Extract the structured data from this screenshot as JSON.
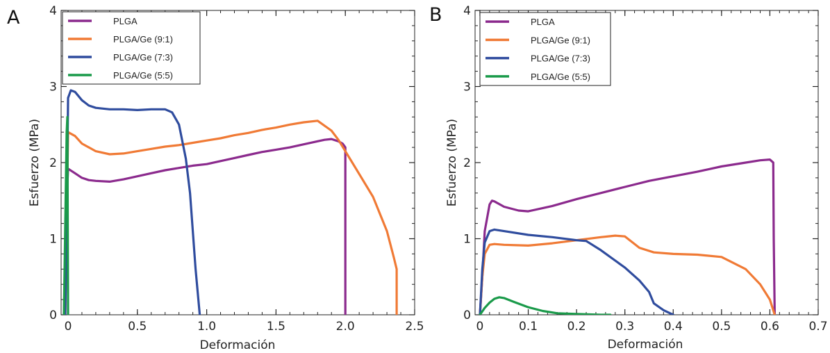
{
  "chart_data": [
    {
      "type": "line",
      "panel_label": "A",
      "xlabel": "Deformación",
      "ylabel": "Esfuerzo (MPa)",
      "xlim": [
        -0.05,
        2.5
      ],
      "ylim": [
        0,
        4
      ],
      "xticks": [
        0,
        0.5,
        1.0,
        1.5,
        2.0,
        2.5
      ],
      "xtick_labels": [
        "0",
        "0.5",
        "1.0",
        "1.5",
        "2.0",
        "2.5"
      ],
      "yticks": [
        0,
        1,
        2,
        3,
        4
      ],
      "ytick_labels": [
        "0",
        "1",
        "2",
        "3",
        "4"
      ],
      "legend_position": "top-left",
      "grid": false,
      "series": [
        {
          "name": "PLGA",
          "color": "#8b2a8d",
          "x": [
            -0.03,
            -0.01,
            0,
            0.05,
            0.1,
            0.15,
            0.2,
            0.3,
            0.4,
            0.5,
            0.6,
            0.7,
            0.8,
            0.9,
            1.0,
            1.1,
            1.2,
            1.3,
            1.4,
            1.5,
            1.6,
            1.7,
            1.8,
            1.85,
            1.9,
            1.95,
            1.98,
            2.0,
            2.0
          ],
          "y": [
            0,
            1.5,
            1.92,
            1.86,
            1.8,
            1.77,
            1.76,
            1.75,
            1.78,
            1.82,
            1.86,
            1.9,
            1.93,
            1.96,
            1.98,
            2.02,
            2.06,
            2.1,
            2.14,
            2.17,
            2.2,
            2.24,
            2.28,
            2.3,
            2.31,
            2.28,
            2.25,
            2.2,
            0
          ]
        },
        {
          "name": "PLGA/Ge (9:1)",
          "color": "#f07a35",
          "x": [
            -0.02,
            -0.005,
            0,
            0.05,
            0.1,
            0.2,
            0.3,
            0.4,
            0.5,
            0.6,
            0.7,
            0.8,
            0.9,
            1.0,
            1.1,
            1.2,
            1.3,
            1.4,
            1.5,
            1.6,
            1.7,
            1.8,
            1.9,
            1.95,
            2.0,
            2.05,
            2.1,
            2.2,
            2.3,
            2.35,
            2.37,
            2.37
          ],
          "y": [
            0,
            1.8,
            2.4,
            2.35,
            2.25,
            2.15,
            2.11,
            2.12,
            2.15,
            2.18,
            2.21,
            2.23,
            2.26,
            2.29,
            2.32,
            2.36,
            2.39,
            2.43,
            2.46,
            2.5,
            2.53,
            2.55,
            2.42,
            2.3,
            2.15,
            2.0,
            1.85,
            1.55,
            1.1,
            0.75,
            0.6,
            0
          ]
        },
        {
          "name": "PLGA/Ge (7:3)",
          "color": "#2f4c9e",
          "x": [
            -0.02,
            -0.005,
            0,
            0.02,
            0.05,
            0.1,
            0.15,
            0.2,
            0.3,
            0.4,
            0.5,
            0.6,
            0.7,
            0.75,
            0.8,
            0.85,
            0.88,
            0.9,
            0.92,
            0.94,
            0.95
          ],
          "y": [
            0,
            2.0,
            2.85,
            2.95,
            2.93,
            2.82,
            2.75,
            2.72,
            2.7,
            2.7,
            2.69,
            2.7,
            2.7,
            2.66,
            2.5,
            2.05,
            1.6,
            1.1,
            0.6,
            0.2,
            0
          ]
        },
        {
          "name": "PLGA/Ge (5:5)",
          "color": "#1a9a4a",
          "x": [
            -0.03,
            -0.025,
            -0.02,
            -0.015,
            -0.01,
            -0.005,
            0
          ],
          "y": [
            0,
            0.6,
            1.2,
            1.8,
            2.4,
            2.6,
            0
          ]
        }
      ],
      "legend": [
        "PLGA",
        "PLGA/Ge (9:1)",
        "PLGA/Ge (7:3)",
        "PLGA/Ge (5:5)"
      ]
    },
    {
      "type": "line",
      "panel_label": "B",
      "xlabel": "Deformación",
      "ylabel": "Esfuerzo (MPa)",
      "xlim": [
        -0.01,
        0.7
      ],
      "ylim": [
        0,
        4
      ],
      "xticks": [
        0,
        0.1,
        0.2,
        0.3,
        0.4,
        0.5,
        0.6,
        0.7
      ],
      "xtick_labels": [
        "0",
        "0.1",
        "0.2",
        "0.3",
        "0.4",
        "0.5",
        "0.6",
        "0.7"
      ],
      "yticks": [
        0,
        1,
        2,
        3,
        4
      ],
      "ytick_labels": [
        "0",
        "1",
        "2",
        "3",
        "4"
      ],
      "legend_position": "top-left",
      "grid": false,
      "series": [
        {
          "name": "PLGA",
          "color": "#8b2a8d",
          "x": [
            0,
            0.005,
            0.01,
            0.02,
            0.025,
            0.03,
            0.05,
            0.08,
            0.1,
            0.15,
            0.2,
            0.25,
            0.3,
            0.35,
            0.4,
            0.45,
            0.5,
            0.55,
            0.58,
            0.6,
            0.607,
            0.608,
            0.61
          ],
          "y": [
            0,
            0.5,
            1.1,
            1.45,
            1.5,
            1.49,
            1.42,
            1.37,
            1.36,
            1.43,
            1.52,
            1.6,
            1.68,
            1.76,
            1.82,
            1.88,
            1.95,
            2.0,
            2.03,
            2.04,
            2.0,
            1.0,
            0
          ]
        },
        {
          "name": "PLGA/Ge (9:1)",
          "color": "#f07a35",
          "x": [
            0,
            0.005,
            0.01,
            0.02,
            0.03,
            0.05,
            0.1,
            0.15,
            0.2,
            0.25,
            0.28,
            0.3,
            0.33,
            0.36,
            0.4,
            0.45,
            0.5,
            0.55,
            0.58,
            0.6,
            0.61
          ],
          "y": [
            0,
            0.5,
            0.8,
            0.92,
            0.93,
            0.92,
            0.91,
            0.94,
            0.98,
            1.02,
            1.04,
            1.03,
            0.88,
            0.82,
            0.8,
            0.79,
            0.76,
            0.6,
            0.4,
            0.2,
            0
          ]
        },
        {
          "name": "PLGA/Ge (7:3)",
          "color": "#2f4c9e",
          "x": [
            0,
            0.005,
            0.01,
            0.02,
            0.03,
            0.05,
            0.1,
            0.15,
            0.2,
            0.22,
            0.25,
            0.3,
            0.33,
            0.35,
            0.36,
            0.38,
            0.4
          ],
          "y": [
            0,
            0.6,
            0.95,
            1.1,
            1.12,
            1.1,
            1.05,
            1.02,
            0.98,
            0.97,
            0.85,
            0.62,
            0.45,
            0.3,
            0.15,
            0.06,
            0
          ]
        },
        {
          "name": "PLGA/Ge (5:5)",
          "color": "#1a9a4a",
          "x": [
            0,
            0.01,
            0.02,
            0.03,
            0.04,
            0.05,
            0.07,
            0.1,
            0.13,
            0.16,
            0.2,
            0.25,
            0.27
          ],
          "y": [
            0,
            0.09,
            0.16,
            0.21,
            0.23,
            0.22,
            0.17,
            0.1,
            0.05,
            0.02,
            0.01,
            0.0,
            0.0
          ]
        }
      ],
      "legend": [
        "PLGA",
        "PLGA/Ge (9:1)",
        "PLGA/Ge (7:3)",
        "PLGA/Ge (5:5)"
      ]
    }
  ]
}
